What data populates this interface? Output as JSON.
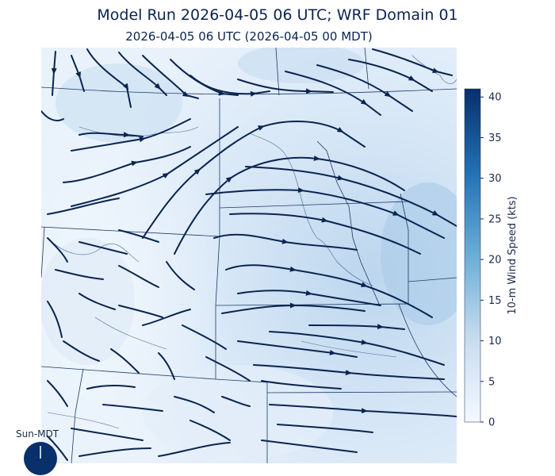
{
  "header": {
    "title": "Model Run 2026-04-05 06 UTC; WRF Domain 01",
    "subtitle": "2026-04-05 06 UTC  (2026-04-05 00 MDT)"
  },
  "colorbar": {
    "label": "10-m Wind Speed (kts)",
    "ticks": [
      0,
      5,
      10,
      15,
      20,
      25,
      30,
      35,
      40
    ],
    "min": 0,
    "max": 41,
    "color_low": "#f4f9ff",
    "color_high": "#08306b"
  },
  "clock": {
    "label": "Sun-MDT"
  },
  "colors": {
    "streamline": "#0a2450",
    "border": "#1d3a66"
  }
}
